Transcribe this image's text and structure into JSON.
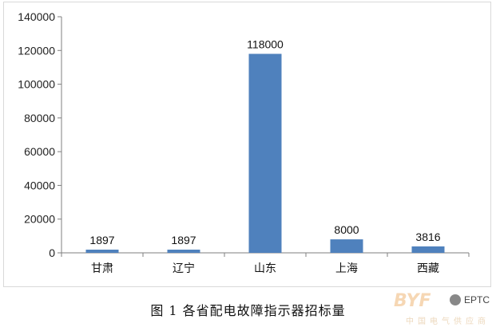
{
  "caption": "图 1   各省配电故障指示器招标量",
  "watermark": {
    "logo": "BYF",
    "cn": "中国电气供应商",
    "eptc": "EPTC"
  },
  "chart_data": {
    "type": "bar",
    "categories": [
      "甘肃",
      "辽宁",
      "山东",
      "上海",
      "西藏"
    ],
    "values": [
      1897,
      1897,
      118000,
      8000,
      3816
    ],
    "data_labels": [
      "1897",
      "1897",
      "118000",
      "8000",
      "3816"
    ],
    "ylim": [
      0,
      140000
    ],
    "yticks": [
      0,
      20000,
      40000,
      60000,
      80000,
      100000,
      120000,
      140000
    ],
    "ytick_labels": [
      "0",
      "20000",
      "40000",
      "60000",
      "80000",
      "100000",
      "120000",
      "140000"
    ],
    "title": "",
    "xlabel": "",
    "ylabel": "",
    "grid": false,
    "bar_color": "#4f81bd",
    "axis_color": "#7f7f7f"
  }
}
